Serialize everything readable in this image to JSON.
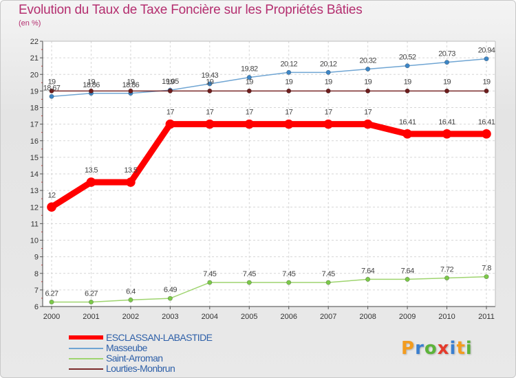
{
  "header": {
    "title": "Evolution du Taux de Taxe Foncière sur les Propriétés Bâties",
    "unit": "(en %)"
  },
  "logo": {
    "letters": [
      "P",
      "r",
      "o",
      "x",
      "i",
      "t",
      "i"
    ],
    "colors": [
      "#f39c1f",
      "#3a7fd0",
      "#5cb33a",
      "#e53b2c",
      "#3a7fd0",
      "#f39c1f",
      "#5cb33a"
    ]
  },
  "chart_data": {
    "type": "line",
    "title": "Evolution du Taux de Taxe Foncière sur les Propriétés Bâties",
    "ylabel": "(en %)",
    "xlabel": "",
    "x": [
      "2000",
      "2001",
      "2002",
      "2003",
      "2004",
      "2005",
      "2006",
      "2007",
      "2008",
      "2009",
      "2010",
      "2011"
    ],
    "ylim": [
      6,
      22
    ],
    "yticks": [
      "6",
      "7",
      "8",
      "9",
      "10",
      "11",
      "12",
      "13",
      "14",
      "15",
      "16",
      "17",
      "18",
      "19",
      "20",
      "21",
      "22"
    ],
    "grid": true,
    "series": [
      {
        "name": "ESCLASSAN-LABASTIDE",
        "color": "#ff0000",
        "values": [
          12,
          13.5,
          13.5,
          17,
          17,
          17,
          17,
          17,
          17,
          16.41,
          16.41,
          16.41
        ],
        "labels": [
          "12",
          "13.5",
          "13.5",
          "17",
          "17",
          "17",
          "17",
          "17",
          "17",
          "16.41",
          "16.41",
          "16.41"
        ]
      },
      {
        "name": "Masseube",
        "color": "#6fa5d3",
        "values": [
          18.67,
          18.86,
          18.86,
          19.05,
          19.43,
          19.82,
          20.12,
          20.12,
          20.32,
          20.52,
          20.73,
          20.94
        ],
        "labels": [
          "18.67",
          "18.86",
          "18.86",
          "19.05",
          "19.43",
          "19.82",
          "20.12",
          "20.12",
          "20.32",
          "20.52",
          "20.73",
          "20.94"
        ]
      },
      {
        "name": "Saint-Arroman",
        "color": "#9ed46e",
        "values": [
          6.27,
          6.27,
          6.4,
          6.49,
          7.45,
          7.45,
          7.45,
          7.45,
          7.64,
          7.64,
          7.72,
          7.8
        ],
        "labels": [
          "6.27",
          "6.27",
          "6.4",
          "6.49",
          "7.45",
          "7.45",
          "7.45",
          "7.45",
          "7.64",
          "7.64",
          "7.72",
          "7.8"
        ]
      },
      {
        "name": "Lourties-Monbrun",
        "color": "#7a2a2a",
        "values": [
          19,
          19,
          19,
          19,
          19,
          19,
          19,
          19,
          19,
          19,
          19,
          19
        ],
        "labels": [
          "19",
          "19",
          "19",
          "19",
          "19",
          "19",
          "19",
          "19",
          "19",
          "19",
          "19",
          "19"
        ]
      }
    ]
  }
}
